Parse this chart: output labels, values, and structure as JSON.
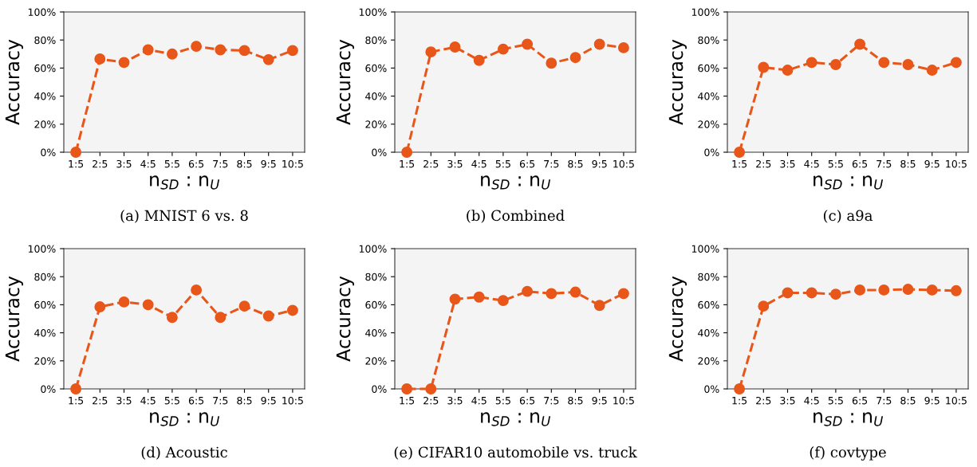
{
  "chart_data": [
    {
      "type": "line",
      "title": "(a) MNIST 6 vs. 8",
      "xlabel": "n$_{SD}$ : n$_{U}$",
      "ylabel": "Accuracy",
      "categories": [
        "1:5",
        "2:5",
        "3:5",
        "4:5",
        "5:5",
        "6:5",
        "7:5",
        "8:5",
        "9:5",
        "10:5"
      ],
      "ylim": [
        0,
        100
      ],
      "yticks": [
        {
          "value": 0,
          "label": "0%"
        },
        {
          "value": 20,
          "label": "20%"
        },
        {
          "value": 40,
          "label": "40%"
        },
        {
          "value": 60,
          "label": "60%"
        },
        {
          "value": 80,
          "label": "80%"
        },
        {
          "value": 100,
          "label": "100%"
        }
      ],
      "marker": "circle",
      "line_style": "dashed",
      "grid": false,
      "color": "#e8561a",
      "values": [
        0,
        66.5,
        64,
        73,
        70,
        75.5,
        73,
        72.5,
        66,
        72.5
      ]
    },
    {
      "type": "line",
      "title": "(b) Combined",
      "xlabel": "n$_{SD}$ : n$_{U}$",
      "ylabel": "Accuracy",
      "categories": [
        "1:5",
        "2:5",
        "3:5",
        "4:5",
        "5:5",
        "6:5",
        "7:5",
        "8:5",
        "9:5",
        "10:5"
      ],
      "ylim": [
        0,
        100
      ],
      "yticks": [
        {
          "value": 0,
          "label": "0%"
        },
        {
          "value": 20,
          "label": "20%"
        },
        {
          "value": 40,
          "label": "40%"
        },
        {
          "value": 60,
          "label": "60%"
        },
        {
          "value": 80,
          "label": "80%"
        },
        {
          "value": 100,
          "label": "100%"
        }
      ],
      "marker": "circle",
      "line_style": "dashed",
      "grid": false,
      "color": "#e8561a",
      "values": [
        0,
        71.5,
        75,
        65.5,
        73.5,
        77,
        63.5,
        67.5,
        77,
        74.5
      ]
    },
    {
      "type": "line",
      "title": "(c) a9a",
      "xlabel": "n$_{SD}$ : n$_{U}$",
      "ylabel": "Accuracy",
      "categories": [
        "1:5",
        "2:5",
        "3:5",
        "4:5",
        "5:5",
        "6:5",
        "7:5",
        "8:5",
        "9:5",
        "10:5"
      ],
      "ylim": [
        0,
        100
      ],
      "yticks": [
        {
          "value": 0,
          "label": "0%"
        },
        {
          "value": 20,
          "label": "20%"
        },
        {
          "value": 40,
          "label": "40%"
        },
        {
          "value": 60,
          "label": "60%"
        },
        {
          "value": 80,
          "label": "80%"
        },
        {
          "value": 100,
          "label": "100%"
        }
      ],
      "marker": "circle",
      "line_style": "dashed",
      "grid": false,
      "color": "#e8561a",
      "values": [
        0,
        60.5,
        58.5,
        64,
        62.5,
        77,
        64,
        62.5,
        58.5,
        64
      ]
    },
    {
      "type": "line",
      "title": "(d) Acoustic",
      "xlabel": "n$_{SD}$ : n$_{U}$",
      "ylabel": "Accuracy",
      "categories": [
        "1:5",
        "2:5",
        "3:5",
        "4:5",
        "5:5",
        "6:5",
        "7:5",
        "8:5",
        "9:5",
        "10:5"
      ],
      "ylim": [
        0,
        100
      ],
      "yticks": [
        {
          "value": 0,
          "label": "0%"
        },
        {
          "value": 20,
          "label": "20%"
        },
        {
          "value": 40,
          "label": "40%"
        },
        {
          "value": 60,
          "label": "60%"
        },
        {
          "value": 80,
          "label": "80%"
        },
        {
          "value": 100,
          "label": "100%"
        }
      ],
      "marker": "circle",
      "line_style": "dashed",
      "grid": false,
      "color": "#e8561a",
      "values": [
        0,
        58.5,
        62,
        60,
        51,
        70.5,
        51,
        59,
        52,
        56
      ]
    },
    {
      "type": "line",
      "title": "(e) CIFAR10 automobile vs. truck",
      "xlabel": "n$_{SD}$ : n$_{U}$",
      "ylabel": "Accuracy",
      "categories": [
        "1:5",
        "2:5",
        "3:5",
        "4:5",
        "5:5",
        "6:5",
        "7:5",
        "8:5",
        "9:5",
        "10:5"
      ],
      "ylim": [
        0,
        100
      ],
      "yticks": [
        {
          "value": 0,
          "label": "0%"
        },
        {
          "value": 20,
          "label": "20%"
        },
        {
          "value": 40,
          "label": "40%"
        },
        {
          "value": 60,
          "label": "60%"
        },
        {
          "value": 80,
          "label": "80%"
        },
        {
          "value": 100,
          "label": "100%"
        }
      ],
      "marker": "circle",
      "line_style": "dashed",
      "grid": false,
      "color": "#e8561a",
      "values": [
        0,
        0,
        64,
        65.5,
        63,
        69.5,
        68,
        69,
        59.5,
        68
      ]
    },
    {
      "type": "line",
      "title": "(f) covtype",
      "xlabel": "n$_{SD}$ : n$_{U}$",
      "ylabel": "Accuracy",
      "categories": [
        "1:5",
        "2:5",
        "3:5",
        "4:5",
        "5:5",
        "6:5",
        "7:5",
        "8:5",
        "9:5",
        "10:5"
      ],
      "ylim": [
        0,
        100
      ],
      "yticks": [
        {
          "value": 0,
          "label": "0%"
        },
        {
          "value": 20,
          "label": "20%"
        },
        {
          "value": 40,
          "label": "40%"
        },
        {
          "value": 60,
          "label": "60%"
        },
        {
          "value": 80,
          "label": "80%"
        },
        {
          "value": 100,
          "label": "100%"
        }
      ],
      "marker": "circle",
      "line_style": "dashed",
      "grid": false,
      "color": "#e8561a",
      "values": [
        0,
        59,
        68.5,
        68.5,
        67.5,
        70.5,
        70.5,
        71,
        70.5,
        70
      ]
    }
  ]
}
